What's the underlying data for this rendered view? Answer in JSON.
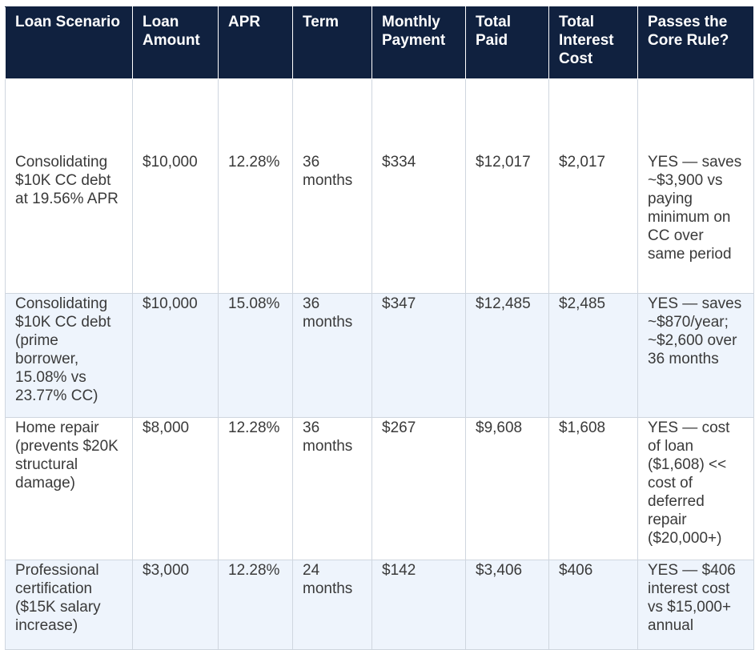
{
  "table": {
    "headers": [
      "Loan Scenario",
      "Loan Amount",
      "APR",
      "Term",
      "Monthly Payment",
      "Total Paid",
      "Total Interest Cost",
      "Passes the Core Rule?"
    ],
    "rows": [
      [
        "Consolidating $10K CC debt at 19.56% APR",
        "$10,000",
        "12.28%",
        "36 months",
        "$334",
        "$12,017",
        "$2,017",
        "YES — saves ~$3,900 vs paying minimum on CC over same period"
      ],
      [
        "Consolidating $10K CC debt (prime borrower, 15.08% vs 23.77% CC)",
        "$10,000",
        "15.08%",
        "36 months",
        "$347",
        "$12,485",
        "$2,485",
        "YES — saves ~$870/year; ~$2,600 over 36 months"
      ],
      [
        "Home repair (prevents $20K structural damage)",
        "$8,000",
        "12.28%",
        "36 months",
        "$267",
        "$9,608",
        "$1,608",
        "YES — cost of loan ($1,608) << cost of deferred repair ($20,000+)"
      ],
      [
        "Professional certification ($15K salary increase)",
        "$3,000",
        "12.28%",
        "24 months",
        "$142",
        "$3,406",
        "$406",
        "YES — $406 interest cost vs $15,000+ annual"
      ]
    ]
  }
}
